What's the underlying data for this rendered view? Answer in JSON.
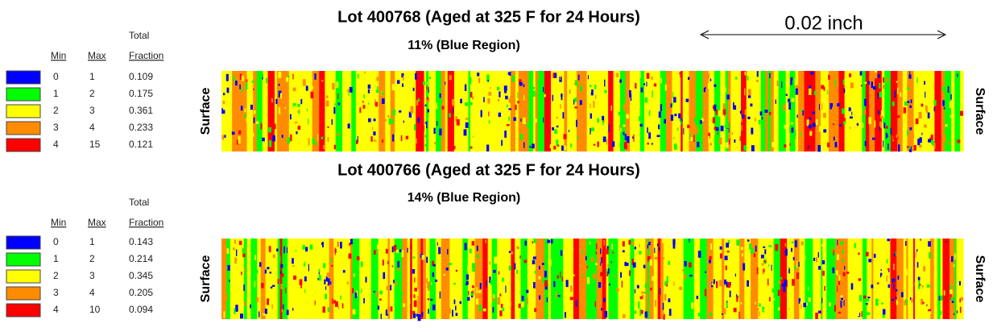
{
  "scale_label": "0.02 inch",
  "panels": [
    {
      "title": "Lot 400768 (Aged at 325 F for 24 Hours)",
      "subtitle": "11% (Blue Region)",
      "left_label": "Surface",
      "right_label": "Surface",
      "legend": {
        "min_header": "Min",
        "max_header": "Max",
        "fraction_header": [
          "Total",
          "Fraction"
        ],
        "rows": [
          {
            "color": "#0000ff",
            "min": 0,
            "max": 1,
            "fraction": 0.109
          },
          {
            "color": "#00ff00",
            "min": 1,
            "max": 2,
            "fraction": 0.175
          },
          {
            "color": "#ffff00",
            "min": 2,
            "max": 3,
            "fraction": 0.361
          },
          {
            "color": "#ff8c00",
            "min": 3,
            "max": 4,
            "fraction": 0.233
          },
          {
            "color": "#ff0000",
            "min": 4,
            "max": 15,
            "fraction": 0.121
          }
        ]
      }
    },
    {
      "title": "Lot 400766 (Aged at 325 F for 24 Hours)",
      "subtitle": "14% (Blue Region)",
      "left_label": "Surface",
      "right_label": "Surface",
      "legend": {
        "min_header": "Min",
        "max_header": "Max",
        "fraction_header": [
          "Total",
          "Fraction"
        ],
        "rows": [
          {
            "color": "#0000ff",
            "min": 0,
            "max": 1,
            "fraction": 0.143
          },
          {
            "color": "#00ff00",
            "min": 1,
            "max": 2,
            "fraction": 0.214
          },
          {
            "color": "#ffff00",
            "min": 2,
            "max": 3,
            "fraction": 0.345
          },
          {
            "color": "#ff8c00",
            "min": 3,
            "max": 4,
            "fraction": 0.205
          },
          {
            "color": "#ff0000",
            "min": 4,
            "max": 10,
            "fraction": 0.094
          }
        ]
      }
    }
  ]
}
